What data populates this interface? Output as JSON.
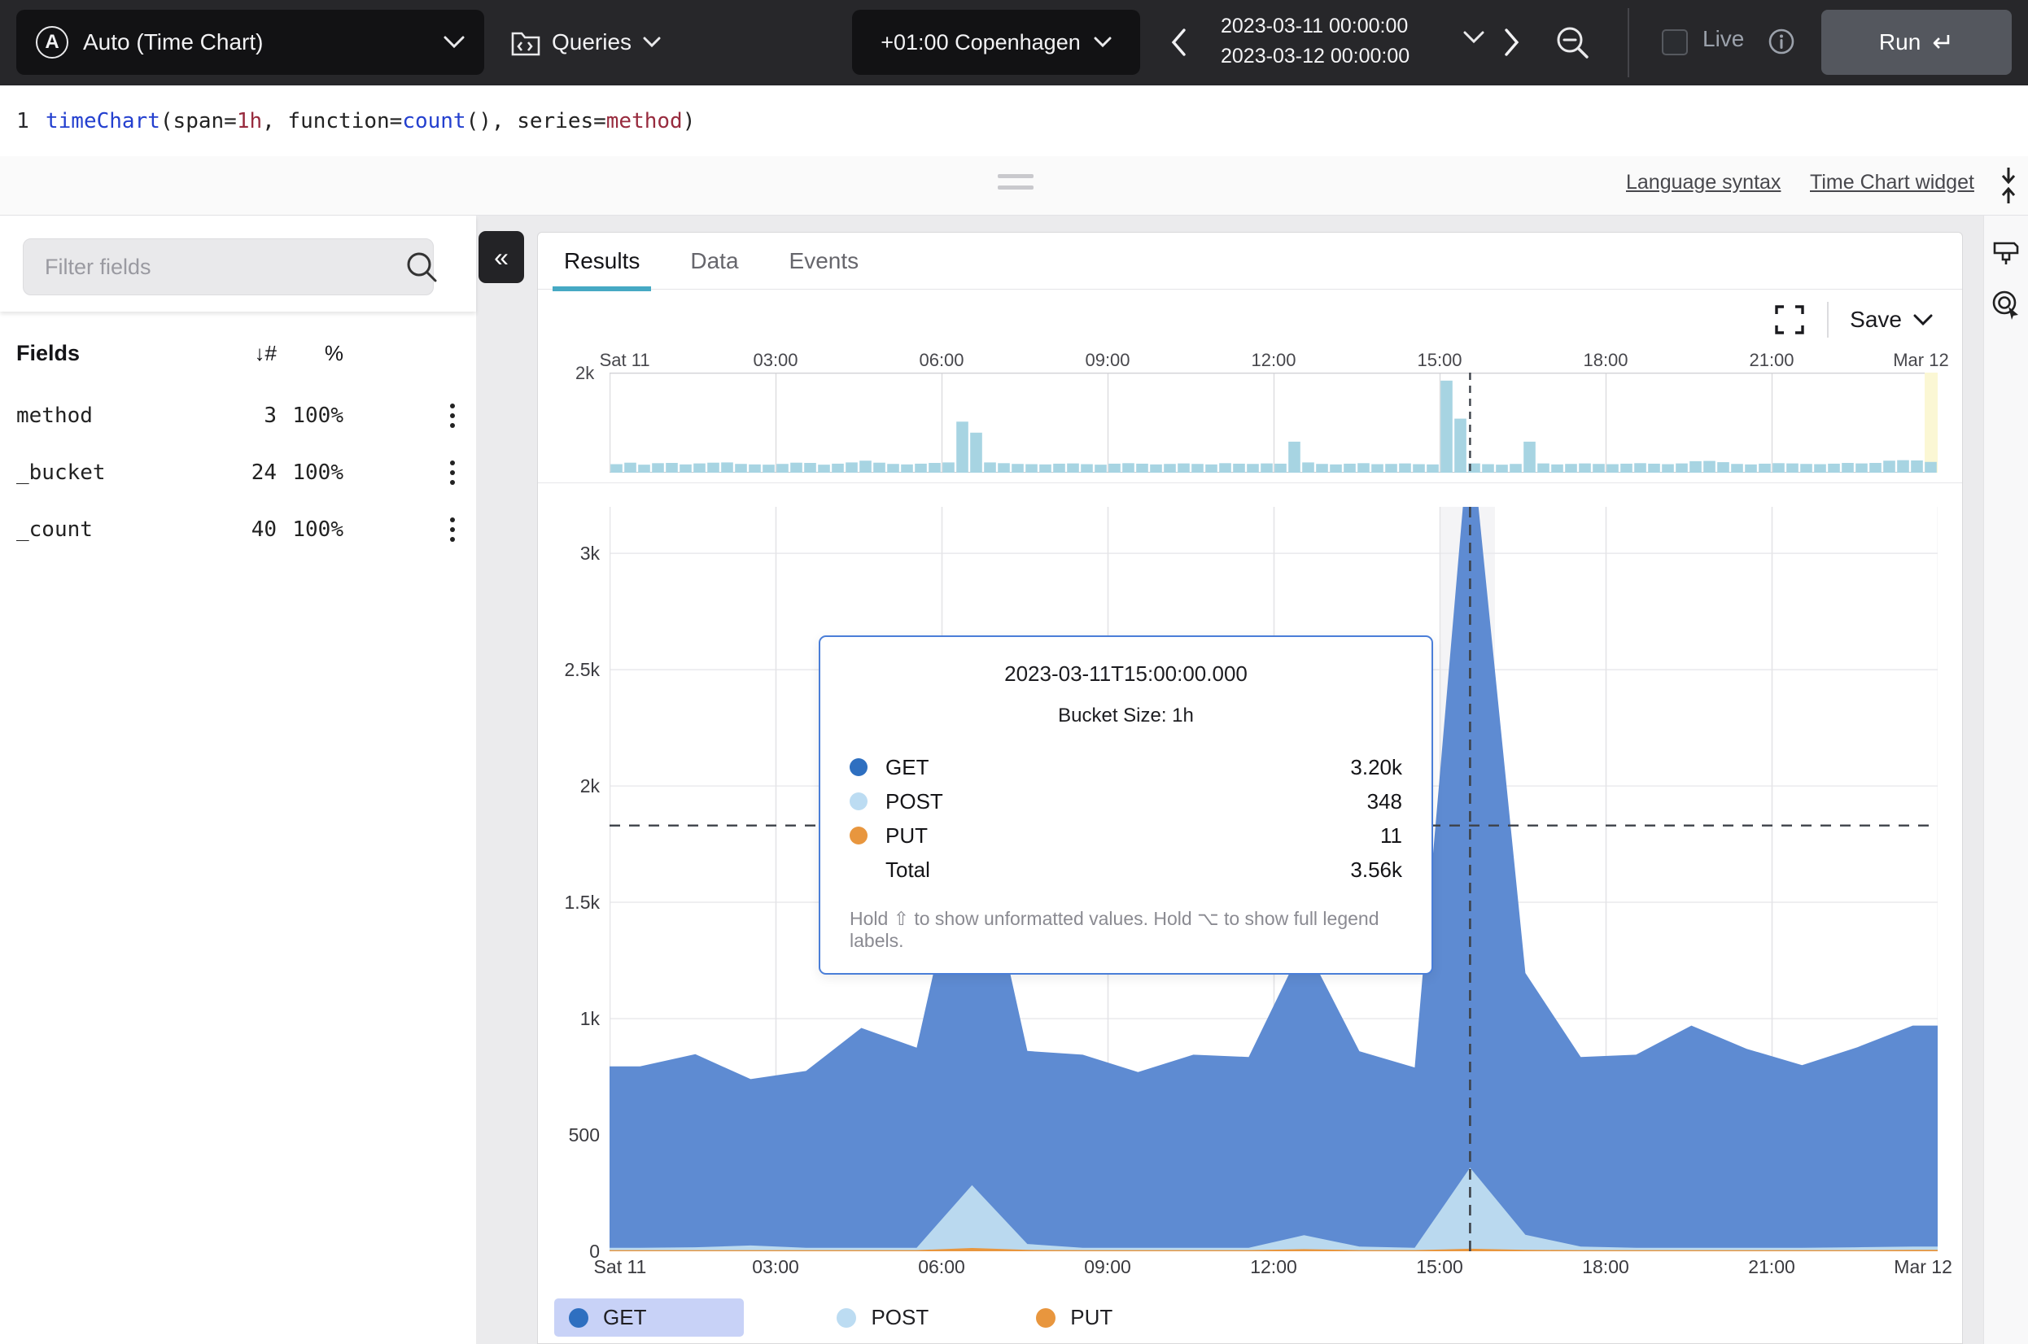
{
  "topbar": {
    "widget_selector_label": "Auto (Time Chart)",
    "widget_icon_letter": "A",
    "queries_label": "Queries",
    "timezone_label": "+01:00 Copenhagen",
    "time_start": "2023-03-11 00:00:00",
    "time_end": "2023-03-12 00:00:00",
    "live_label": "Live",
    "run_label": "Run",
    "run_key_glyph": "↵"
  },
  "query": {
    "line_number": "1",
    "tokens": [
      {
        "text": "timeChart",
        "type": "function"
      },
      {
        "text": "(span=",
        "type": "plain"
      },
      {
        "text": "1h",
        "type": "value"
      },
      {
        "text": ", function=",
        "type": "plain"
      },
      {
        "text": "count",
        "type": "function"
      },
      {
        "text": "(), series=",
        "type": "plain"
      },
      {
        "text": "method",
        "type": "value"
      },
      {
        "text": ")",
        "type": "plain"
      }
    ]
  },
  "links": {
    "language_syntax": "Language syntax",
    "widget_docs": "Time Chart widget"
  },
  "fields_panel": {
    "filter_placeholder": "Filter fields",
    "collapse_glyph": "«",
    "header": {
      "fields": "Fields",
      "sort_glyph": "↓",
      "count": "#",
      "percent": "%"
    },
    "rows": [
      {
        "name": "method",
        "count": "3",
        "percent": "100%"
      },
      {
        "name": "_bucket",
        "count": "24",
        "percent": "100%"
      },
      {
        "name": "_count",
        "count": "40",
        "percent": "100%"
      }
    ]
  },
  "tabs": [
    {
      "label": "Results",
      "active": true
    },
    {
      "label": "Data",
      "active": false
    },
    {
      "label": "Events",
      "active": false
    }
  ],
  "toolbar": {
    "save_label": "Save"
  },
  "tooltip": {
    "title": "2023-03-11T15:00:00.000",
    "subtitle": "Bucket Size: 1h",
    "rows": [
      {
        "label": "GET",
        "value": "3.20k",
        "color": "#2e6fc0"
      },
      {
        "label": "POST",
        "value": "348",
        "color": "#bcdcf2"
      },
      {
        "label": "PUT",
        "value": "11",
        "color": "#e8963e"
      },
      {
        "label": "Total",
        "value": "3.56k",
        "color": null
      }
    ],
    "footer": "Hold ⇧ to show unformatted values. Hold ⌥ to show full legend labels."
  },
  "legend": [
    {
      "label": "GET",
      "color": "#2e6fc0",
      "selected": true
    },
    {
      "label": "POST",
      "color": "#bcdcf2",
      "selected": false
    },
    {
      "label": "PUT",
      "color": "#e8963e",
      "selected": false
    }
  ],
  "chart_data": [
    {
      "id": "overview-histogram",
      "type": "bar",
      "title": "Event distribution overview",
      "x_labels": [
        "Sat 11",
        "03:00",
        "06:00",
        "09:00",
        "12:00",
        "15:00",
        "18:00",
        "21:00",
        "Mar 12"
      ],
      "x_hours": [
        0,
        3,
        6,
        9,
        12,
        15,
        18,
        21,
        24
      ],
      "ylim": [
        0,
        2000
      ],
      "y_tick_label": "2k",
      "bucket_minutes": 15,
      "bar_color": "#a7d4e2",
      "cursor_x_hours": 15.55,
      "edge_highlight_color": "#fbf7d4",
      "values": [
        170,
        200,
        160,
        190,
        195,
        165,
        185,
        200,
        205,
        175,
        165,
        160,
        175,
        200,
        195,
        160,
        180,
        205,
        240,
        200,
        175,
        165,
        180,
        195,
        205,
        1020,
        800,
        205,
        190,
        175,
        170,
        165,
        180,
        185,
        170,
        160,
        180,
        190,
        180,
        165,
        175,
        185,
        175,
        165,
        190,
        180,
        175,
        185,
        180,
        620,
        205,
        175,
        165,
        180,
        190,
        170,
        175,
        185,
        170,
        165,
        1840,
        1080,
        185,
        170,
        160,
        175,
        620,
        185,
        165,
        175,
        185,
        175,
        170,
        180,
        190,
        180,
        170,
        185,
        230,
        235,
        210,
        175,
        165,
        180,
        190,
        185,
        175,
        170,
        180,
        195,
        185,
        195,
        240,
        250,
        245,
        215
      ]
    },
    {
      "id": "main-time-chart",
      "type": "area",
      "stacked": true,
      "title": "timeChart(span=1h, function=count(), series=method)",
      "x_labels": [
        "Sat 11",
        "03:00",
        "06:00",
        "09:00",
        "12:00",
        "15:00",
        "18:00",
        "21:00",
        "Mar 12"
      ],
      "x_hours": [
        0,
        3,
        6,
        9,
        12,
        15,
        18,
        21,
        24
      ],
      "bucket_hours": 1,
      "point_offset_hours": 0.55,
      "ylim": [
        0,
        3200
      ],
      "y_ticks": [
        {
          "label": "3k",
          "value": 3000
        },
        {
          "label": "2.5k",
          "value": 2500
        },
        {
          "label": "2k",
          "value": 2000
        },
        {
          "label": "1.5k",
          "value": 1500
        },
        {
          "label": "1k",
          "value": 1000
        },
        {
          "label": "500",
          "value": 500
        },
        {
          "label": "0",
          "value": 0
        }
      ],
      "series": [
        {
          "name": "PUT",
          "color": "#e8963e",
          "values": [
            5,
            5,
            5,
            5,
            5,
            5,
            14,
            6,
            5,
            5,
            5,
            5,
            9,
            5,
            5,
            11,
            6,
            5,
            5,
            5,
            5,
            5,
            5,
            6
          ]
        },
        {
          "name": "POST",
          "color": "#bad9ef",
          "values": [
            10,
            12,
            20,
            10,
            10,
            10,
            270,
            25,
            10,
            10,
            10,
            10,
            60,
            15,
            10,
            348,
            65,
            15,
            10,
            10,
            10,
            10,
            12,
            14
          ]
        },
        {
          "name": "GET",
          "color": "#5e8bd2",
          "values": [
            780,
            830,
            715,
            760,
            945,
            860,
            1650,
            830,
            830,
            755,
            830,
            820,
            1255,
            840,
            775,
            3200,
            1125,
            815,
            830,
            955,
            855,
            785,
            860,
            950
          ]
        }
      ],
      "threshold_line_value": 1830,
      "cursor_x_hours": 15.55,
      "hover_band_hours": [
        15,
        16
      ],
      "grid": true,
      "legend_position": "bottom"
    }
  ]
}
